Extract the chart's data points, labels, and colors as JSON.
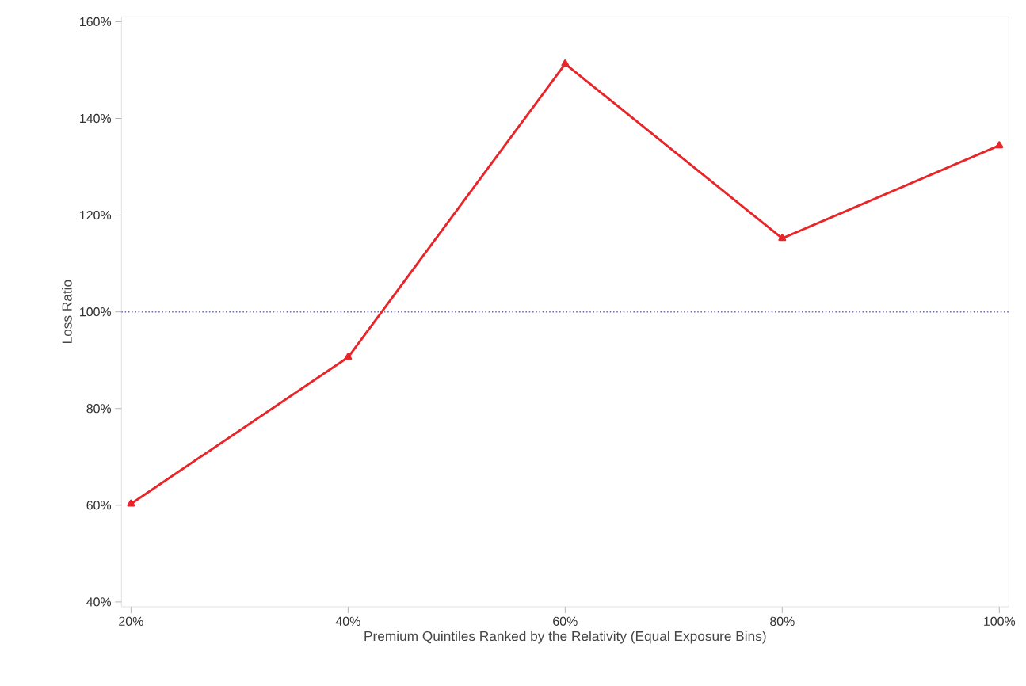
{
  "chart_data": {
    "type": "line",
    "xlabel": "Premium Quintiles Ranked by the Relativity (Equal Exposure Bins)",
    "ylabel": "Loss Ratio",
    "categories": [
      "20%",
      "40%",
      "60%",
      "80%",
      "100%"
    ],
    "series": [
      {
        "color": "#e8262a",
        "values": [
          60.3,
          90.6,
          151.3,
          115.2,
          134.4
        ]
      }
    ],
    "ylim": [
      39,
      161
    ],
    "yticks": [
      {
        "value": 40,
        "label": "40%"
      },
      {
        "value": 60,
        "label": "60%"
      },
      {
        "value": 80,
        "label": "80%"
      },
      {
        "value": 100,
        "label": "100%"
      },
      {
        "value": 120,
        "label": "120%"
      },
      {
        "value": 140,
        "label": "140%"
      },
      {
        "value": 160,
        "label": "160%"
      }
    ],
    "ref_lines": [
      {
        "axis": "y",
        "value": 100,
        "color": "#6a6ad0",
        "line_style": "dotted"
      }
    ],
    "marker": "triangle",
    "line_style": "solid"
  }
}
